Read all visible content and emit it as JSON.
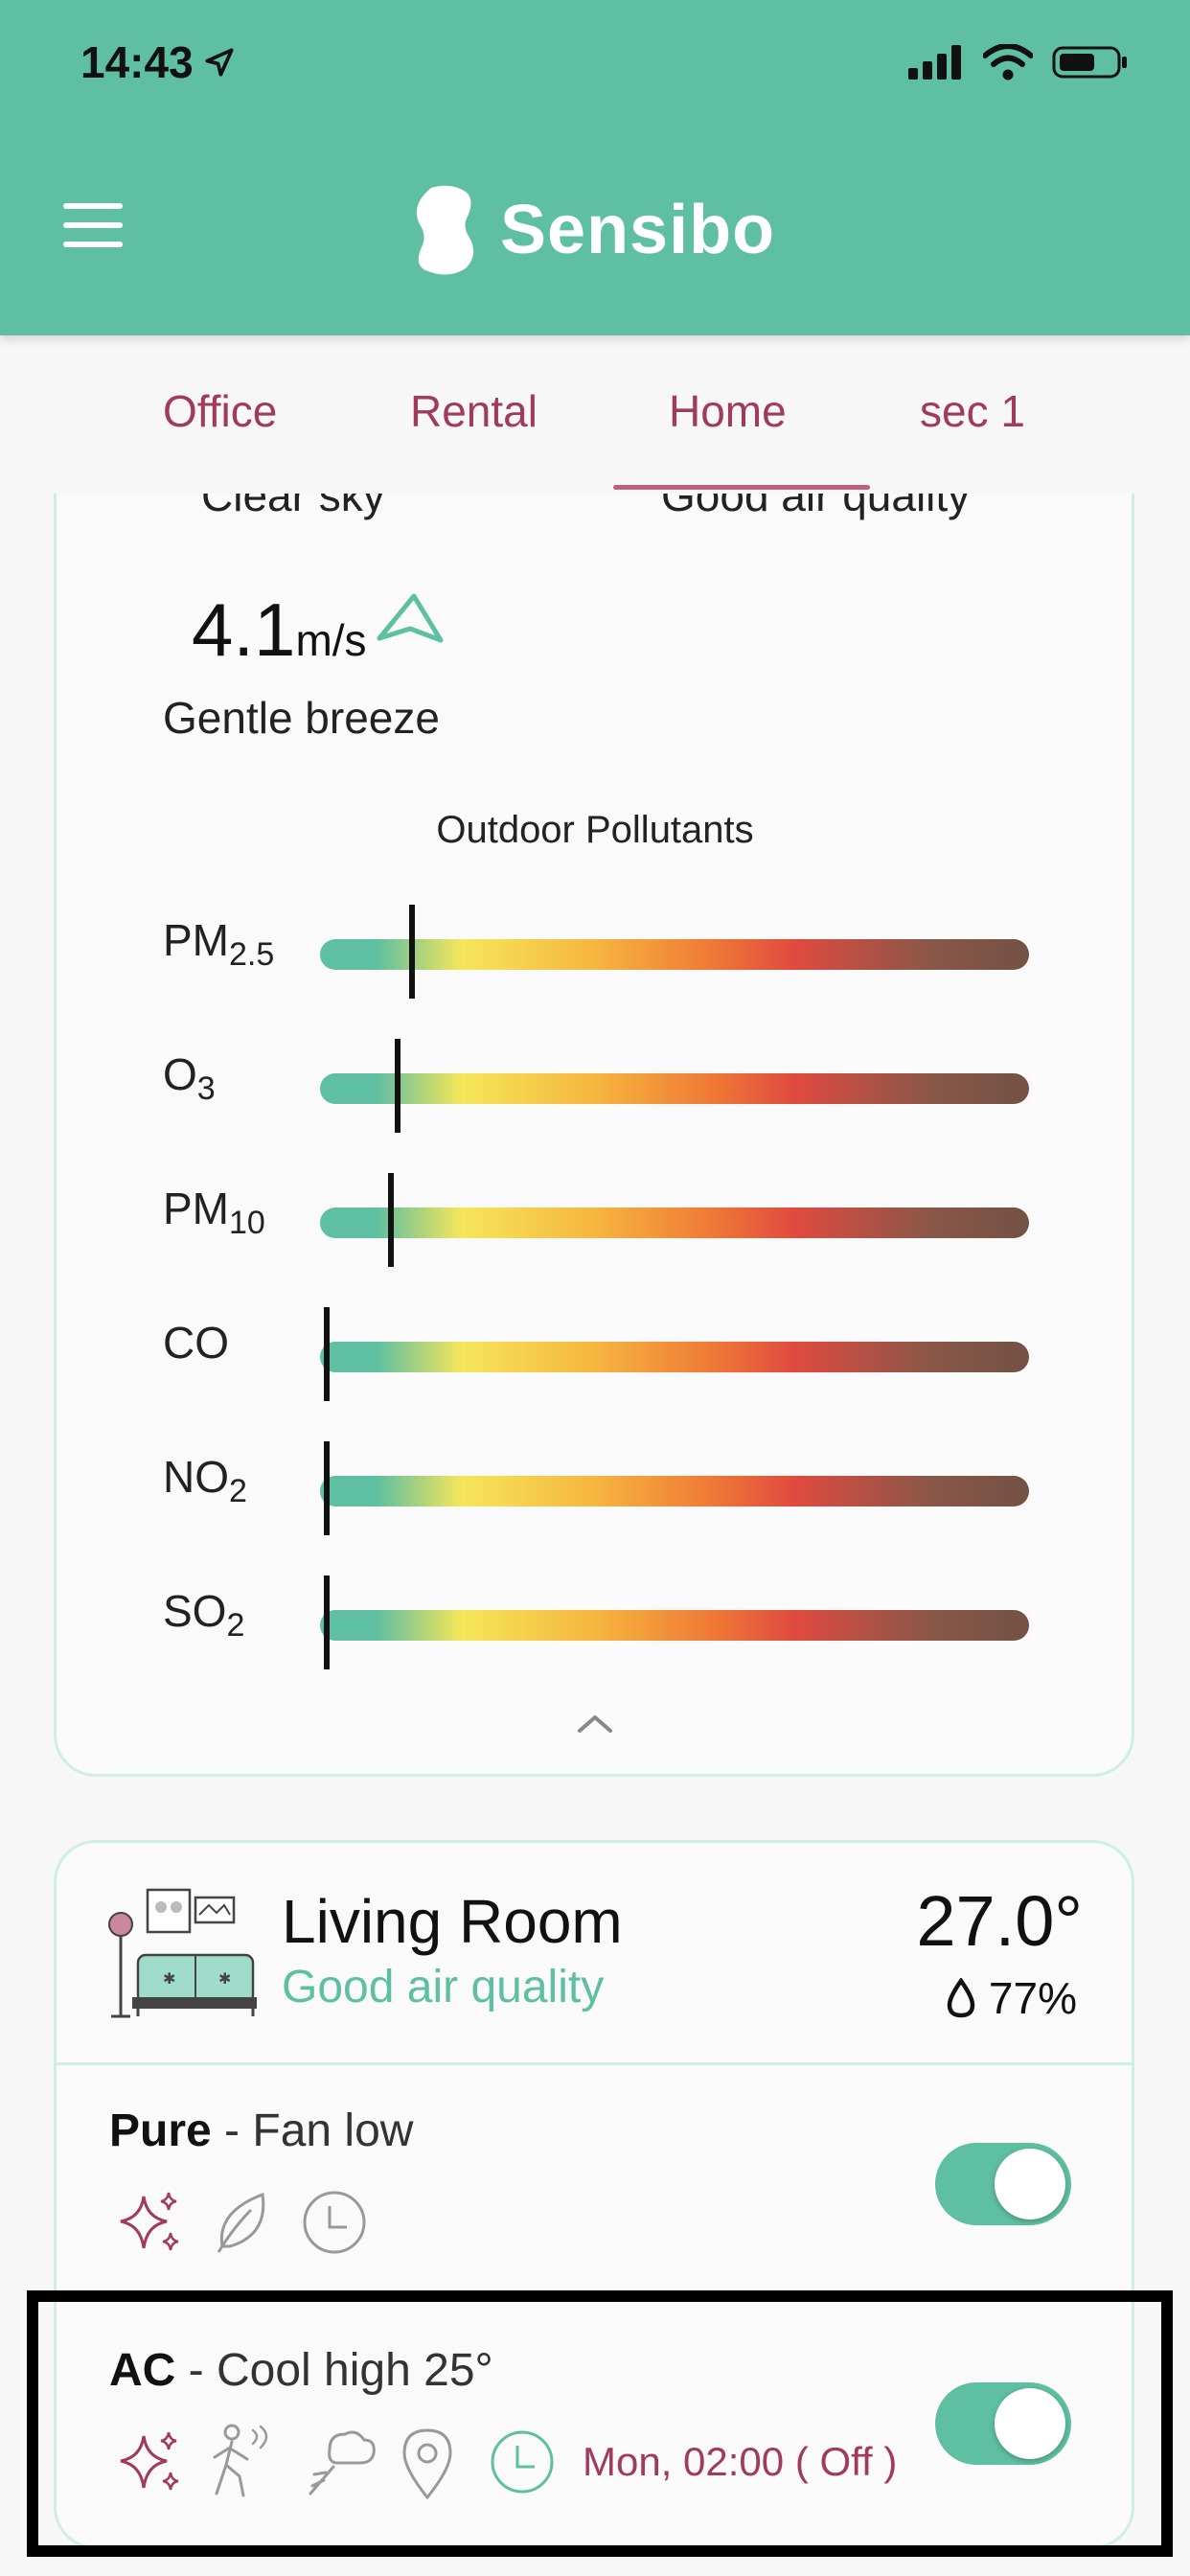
{
  "status_bar": {
    "time": "14:43"
  },
  "header": {
    "brand": "Sensibo"
  },
  "tabs": [
    {
      "label": "Office"
    },
    {
      "label": "Rental"
    },
    {
      "label": "Home"
    },
    {
      "label": "sec 1"
    }
  ],
  "active_tab": "Home",
  "weather": {
    "condition": "Clear sky",
    "air_quality": "Good air quality",
    "wind_speed": "4.1",
    "wind_unit": "m/s",
    "wind_description": "Gentle breeze"
  },
  "pollutants": {
    "title": "Outdoor Pollutants",
    "items": [
      {
        "name": "PM",
        "sub": "2.5",
        "level": 0.13
      },
      {
        "name": "O",
        "sub": "3",
        "level": 0.11
      },
      {
        "name": "PM",
        "sub": "10",
        "level": 0.1
      },
      {
        "name": "CO",
        "sub": "",
        "level": 0.01
      },
      {
        "name": "NO",
        "sub": "2",
        "level": 0.01
      },
      {
        "name": "SO",
        "sub": "2",
        "level": 0.01
      }
    ]
  },
  "room": {
    "name": "Living Room",
    "air_quality": "Good air quality",
    "temperature": "27.0°",
    "humidity": "77%"
  },
  "devices": {
    "pure": {
      "name": "Pure",
      "mode": " - Fan low",
      "on": true
    },
    "ac": {
      "name": "AC",
      "mode": " - Cool high 25°",
      "on": true,
      "schedule": "Mon, 02:00 ( Off )"
    }
  },
  "colors": {
    "brand_green": "#5fbfa2",
    "accent_magenta": "#a13a5f",
    "card_border": "#cfeee4"
  }
}
